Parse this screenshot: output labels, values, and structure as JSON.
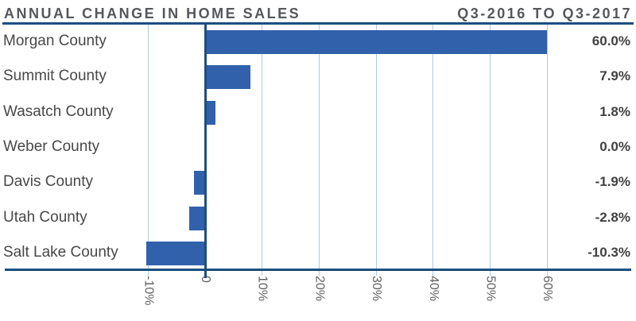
{
  "header": {
    "title": "ANNUAL CHANGE IN HOME SALES",
    "subtitle": "Q3-2016 TO Q3-2017"
  },
  "chart_data": {
    "type": "bar",
    "orientation": "horizontal",
    "title": "ANNUAL CHANGE IN HOME SALES",
    "subtitle": "Q3-2016 TO Q3-2017",
    "categories": [
      "Morgan County",
      "Summit County",
      "Wasatch County",
      "Weber County",
      "Davis County",
      "Utah County",
      "Salt Lake County"
    ],
    "values": [
      60.0,
      7.9,
      1.8,
      0.0,
      -1.9,
      -2.8,
      -10.3
    ],
    "value_labels": [
      "60.0%",
      "7.9%",
      "1.8%",
      "0.0%",
      "-1.9%",
      "-2.8%",
      "-10.3%"
    ],
    "x_ticks": [
      {
        "value": -10,
        "label": "-10%"
      },
      {
        "value": 0,
        "label": "0"
      },
      {
        "value": 10,
        "label": "10%"
      },
      {
        "value": 20,
        "label": "20%"
      },
      {
        "value": 30,
        "label": "30%"
      },
      {
        "value": 40,
        "label": "40%"
      },
      {
        "value": 50,
        "label": "50%"
      },
      {
        "value": 60,
        "label": "60%"
      }
    ],
    "xlim": [
      -36,
      76
    ],
    "grid": true,
    "legend": false,
    "unit": "%",
    "colors": {
      "bar": "#3161ab",
      "axis": "#1c4e80",
      "gridline": "#b0c9e0",
      "title": "#55575b",
      "category_label": "#48484a",
      "value_label": "#414142",
      "tick_label": "#636363"
    }
  }
}
